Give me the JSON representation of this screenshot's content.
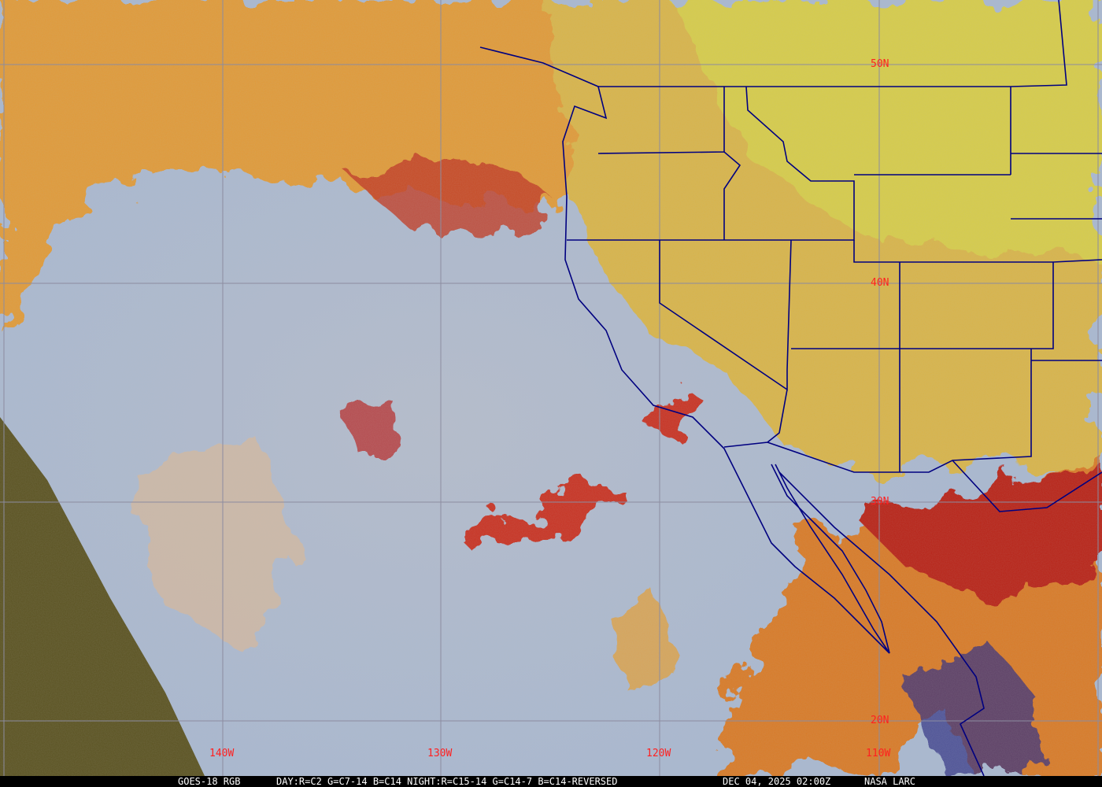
{
  "map": {
    "latitude_labels": [
      "50N",
      "40N",
      "30N",
      "20N"
    ],
    "longitude_labels": [
      "140W",
      "130W",
      "120W",
      "110W"
    ],
    "colors": {
      "grid": "#8c8ca0",
      "labels": "#ff2020",
      "borders": "#000080",
      "low_cloud": "#aab8cc",
      "high_cloud": "#e8a040",
      "deep_cloud": "#c02020",
      "land_clear": "#e0c050",
      "night_side": "#5a4a20"
    }
  },
  "caption": {
    "satellite": "GOES-18 RGB",
    "recipe": "DAY:R=C2 G=C7-14 B=C14 NIGHT:R=C15-14 G=C14-7 B=C14-REVERSED",
    "timestamp": "DEC 04, 2025 02:00Z",
    "source": "NASA LARC"
  }
}
